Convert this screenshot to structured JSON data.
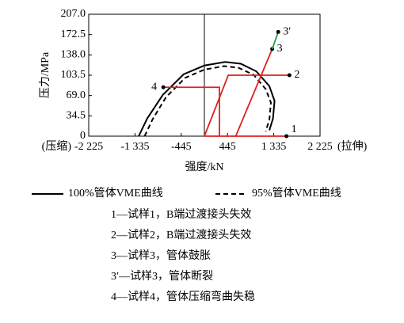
{
  "chart_data": {
    "type": "line",
    "xlabel": "强度/kN",
    "ylabel": "压力/MPa",
    "x_left_note": "(压缩)",
    "x_right_note": "(拉伸)",
    "xlim": [
      -2225,
      2225
    ],
    "xticks": [
      {
        "value": -2225,
        "label": "-2 225"
      },
      {
        "value": -1335,
        "label": "-1 335"
      },
      -445,
      445,
      {
        "value": 1335,
        "label": "1 335"
      },
      {
        "value": 2225,
        "label": "2 225"
      }
    ],
    "ylim": [
      0,
      207
    ],
    "yticks": [
      0,
      34.5,
      {
        "value": 69,
        "label": "69.0"
      },
      103.5,
      {
        "value": 138,
        "label": "138.0"
      },
      172.5,
      {
        "value": 207,
        "label": "207.0"
      }
    ],
    "series": [
      {
        "name": "100%管体VME曲线",
        "color": "#000000",
        "dashed": false,
        "x": [
          -1263,
          -1100,
          -800,
          -400,
          0,
          400,
          700,
          1000,
          1250,
          1350,
          1320,
          1250
        ],
        "y": [
          0,
          30,
          70,
          105,
          120,
          126,
          123,
          110,
          85,
          60,
          30,
          10
        ]
      },
      {
        "name": "95%管体VME曲线",
        "color": "#000000",
        "dashed": true,
        "x": [
          -1150,
          -1000,
          -740,
          -370,
          0,
          380,
          660,
          950,
          1180,
          1280,
          1250,
          1180
        ],
        "y": [
          0,
          28,
          66,
          99,
          113,
          119,
          116,
          104,
          80,
          57,
          28,
          8
        ]
      }
    ],
    "samples": [
      {
        "label": "1",
        "color": "#e02020",
        "x": [
          0,
          1579
        ],
        "y": [
          0,
          0
        ]
      },
      {
        "label": "2",
        "color": "#e02020",
        "x": [
          0,
          460,
          1636
        ],
        "y": [
          0,
          103.5,
          103.5
        ]
      },
      {
        "label": "3",
        "color": "#e02020",
        "x": [
          603,
          1305
        ],
        "y": [
          0,
          148
        ]
      },
      {
        "label": "3′",
        "color": "#20a040",
        "x": [
          1305,
          1421
        ],
        "y": [
          148,
          177
        ]
      },
      {
        "label": "4",
        "color": "#e02020",
        "x": [
          290,
          290,
          -790
        ],
        "y": [
          0,
          83,
          83
        ]
      }
    ],
    "notes": [
      "1—试样1，B端过渡接头失效",
      "2—试样2，B端过渡接头失效",
      "3—试样3，管体鼓胀",
      "3′—试样3，管体断裂",
      "4—试样4，管体压缩弯曲失稳"
    ]
  }
}
